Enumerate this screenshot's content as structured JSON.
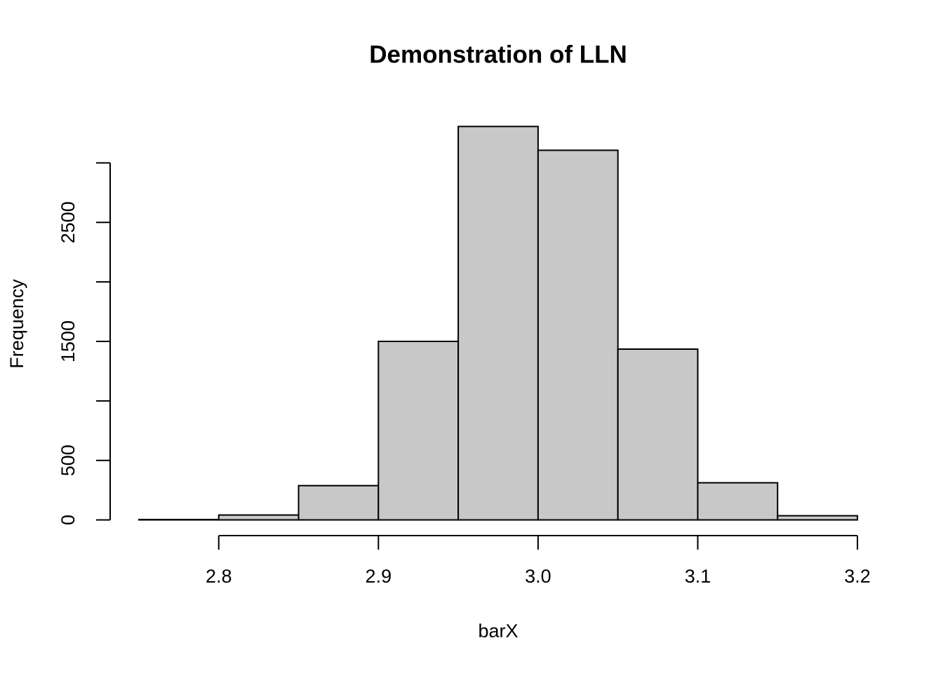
{
  "chart_data": {
    "type": "histogram",
    "title": "Demonstration of LLN",
    "x_label": "barX",
    "y_label": "Frequency",
    "bins": [
      2.75,
      2.8,
      2.85,
      2.9,
      2.95,
      3.0,
      3.05,
      3.1,
      3.15,
      3.2
    ],
    "values": [
      3,
      41,
      288,
      1500,
      3306,
      3106,
      1435,
      312,
      35
    ],
    "color": "#c8c8c8",
    "xlim": [
      2.732,
      3.218
    ],
    "ylim": [
      -132,
      3438
    ],
    "xticks": [
      2.8,
      2.9,
      {
        "value": 3,
        "label": "3.0"
      },
      3.1,
      3.2
    ],
    "yticks": [
      0,
      500,
      {
        "value": 1000,
        "label": null
      },
      1500,
      {
        "value": 2000,
        "label": null
      },
      2500,
      {
        "value": 3000,
        "label": null
      }
    ]
  }
}
